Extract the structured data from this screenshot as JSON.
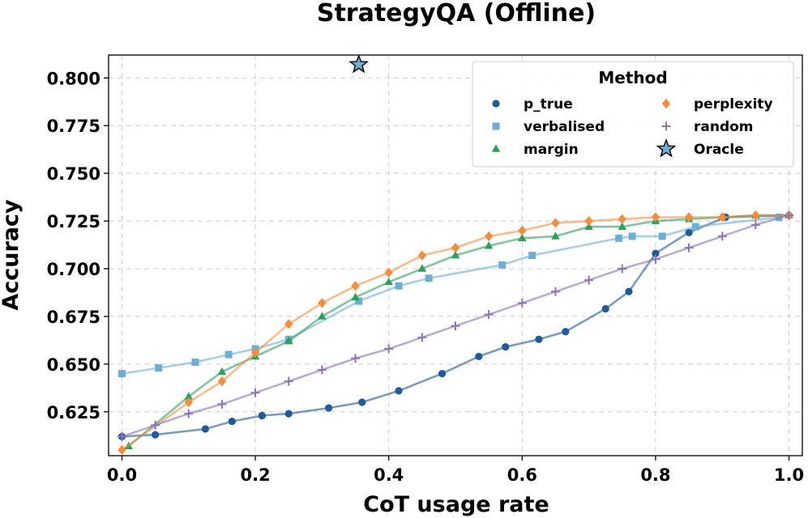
{
  "chart_data": {
    "type": "line",
    "title": "StrategyQA (Offline)",
    "xlabel": "CoT usage rate",
    "ylabel": "Accuracy",
    "xlim": [
      -0.02,
      1.02
    ],
    "ylim": [
      0.602,
      0.812
    ],
    "xticks": [
      0.0,
      0.2,
      0.4,
      0.6,
      0.8,
      1.0
    ],
    "xtick_labels": [
      "0.0",
      "0.2",
      "0.4",
      "0.6",
      "0.8",
      "1.0"
    ],
    "yticks": [
      0.625,
      0.65,
      0.675,
      0.7,
      0.725,
      0.75,
      0.775,
      0.8
    ],
    "ytick_labels": [
      "0.625",
      "0.650",
      "0.675",
      "0.700",
      "0.725",
      "0.750",
      "0.775",
      "0.800"
    ],
    "grid": true,
    "legend": {
      "title": "Method",
      "placement": "top-right"
    },
    "series": [
      {
        "name": "p_true",
        "marker": "circle",
        "color": "#1f5a9a",
        "x": [
          0.0,
          0.05,
          0.125,
          0.165,
          0.21,
          0.25,
          0.31,
          0.36,
          0.415,
          0.48,
          0.535,
          0.575,
          0.625,
          0.665,
          0.725,
          0.76,
          0.8,
          0.85,
          0.905,
          1.0
        ],
        "y": [
          0.612,
          0.613,
          0.616,
          0.62,
          0.623,
          0.624,
          0.627,
          0.63,
          0.636,
          0.645,
          0.654,
          0.659,
          0.663,
          0.667,
          0.679,
          0.688,
          0.708,
          0.719,
          0.727,
          0.728
        ]
      },
      {
        "name": "verbalised",
        "marker": "square",
        "color": "#6baed6",
        "x": [
          0.0,
          0.055,
          0.11,
          0.16,
          0.2,
          0.25,
          0.355,
          0.415,
          0.46,
          0.57,
          0.615,
          0.745,
          0.765,
          0.81,
          0.86,
          0.985
        ],
        "y": [
          0.645,
          0.648,
          0.651,
          0.655,
          0.658,
          0.663,
          0.683,
          0.691,
          0.695,
          0.702,
          0.707,
          0.716,
          0.717,
          0.717,
          0.722,
          0.727
        ]
      },
      {
        "name": "margin",
        "marker": "triangle",
        "color": "#2ca05a",
        "x": [
          0.01,
          0.1,
          0.15,
          0.2,
          0.25,
          0.3,
          0.35,
          0.4,
          0.45,
          0.5,
          0.55,
          0.6,
          0.65,
          0.7,
          0.75,
          0.8,
          0.85,
          0.9,
          0.95,
          1.0
        ],
        "y": [
          0.607,
          0.633,
          0.646,
          0.654,
          0.662,
          0.675,
          0.685,
          0.693,
          0.7,
          0.707,
          0.712,
          0.716,
          0.717,
          0.722,
          0.722,
          0.725,
          0.726,
          0.727,
          0.728,
          0.728
        ]
      },
      {
        "name": "perplexity",
        "marker": "diamond",
        "color": "#f58d3f",
        "x": [
          0.0,
          0.1,
          0.15,
          0.2,
          0.25,
          0.3,
          0.35,
          0.4,
          0.45,
          0.5,
          0.55,
          0.6,
          0.65,
          0.7,
          0.75,
          0.8,
          0.85,
          0.9,
          0.95,
          1.0
        ],
        "y": [
          0.605,
          0.63,
          0.641,
          0.656,
          0.671,
          0.682,
          0.691,
          0.698,
          0.707,
          0.711,
          0.717,
          0.72,
          0.724,
          0.725,
          0.726,
          0.727,
          0.727,
          0.727,
          0.728,
          0.728
        ]
      },
      {
        "name": "random",
        "marker": "plus",
        "color": "#8c73b8",
        "x": [
          0.0,
          0.05,
          0.1,
          0.15,
          0.2,
          0.25,
          0.3,
          0.35,
          0.4,
          0.45,
          0.5,
          0.55,
          0.6,
          0.65,
          0.7,
          0.75,
          0.8,
          0.85,
          0.9,
          0.95,
          1.0
        ],
        "y": [
          0.612,
          0.618,
          0.624,
          0.629,
          0.635,
          0.641,
          0.647,
          0.653,
          0.658,
          0.664,
          0.67,
          0.676,
          0.682,
          0.688,
          0.694,
          0.7,
          0.705,
          0.711,
          0.717,
          0.723,
          0.728
        ]
      }
    ],
    "oracle": {
      "name": "Oracle",
      "marker": "star",
      "color": "#6baed6",
      "x": 0.355,
      "y": 0.807
    }
  }
}
